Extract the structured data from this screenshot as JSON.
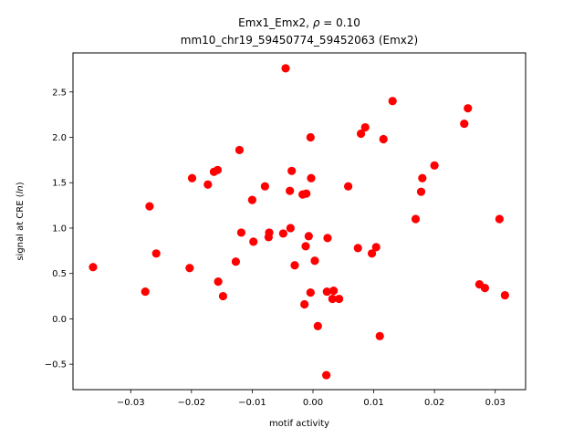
{
  "chart_data": {
    "type": "scatter",
    "title_line1_prefix": "Emx1_Emx2, ",
    "title_rho_symbol": "ρ",
    "title_rho_value": " = 0.10",
    "title_line2": "mm10_chr19_59450774_59452063 (Emx2)",
    "xlabel": "motif activity",
    "ylabel_prefix": "signal at CRE (",
    "ylabel_italic": "ln",
    "ylabel_suffix": ")",
    "xlim": [
      -0.0395,
      0.035
    ],
    "ylim": [
      -0.78,
      2.93
    ],
    "xticks": [
      -0.03,
      -0.02,
      -0.01,
      0.0,
      0.01,
      0.02,
      0.03
    ],
    "xtick_labels": [
      "−0.03",
      "−0.02",
      "−0.01",
      "0.00",
      "0.01",
      "0.02",
      "0.03"
    ],
    "yticks": [
      -0.5,
      0.0,
      0.5,
      1.0,
      1.5,
      2.0,
      2.5
    ],
    "ytick_labels": [
      "−0.5",
      "0.0",
      "0.5",
      "1.0",
      "1.5",
      "2.0",
      "2.5"
    ],
    "marker_color": "#ff0000",
    "points": [
      {
        "x": -0.0362,
        "y": 0.57
      },
      {
        "x": -0.0276,
        "y": 0.3
      },
      {
        "x": -0.0269,
        "y": 1.24
      },
      {
        "x": -0.0258,
        "y": 0.72
      },
      {
        "x": -0.0203,
        "y": 0.56
      },
      {
        "x": -0.0199,
        "y": 1.55
      },
      {
        "x": -0.0173,
        "y": 1.48
      },
      {
        "x": -0.0163,
        "y": 1.62
      },
      {
        "x": -0.0157,
        "y": 1.64
      },
      {
        "x": -0.0156,
        "y": 0.41
      },
      {
        "x": -0.0148,
        "y": 0.25
      },
      {
        "x": -0.0127,
        "y": 0.63
      },
      {
        "x": -0.0121,
        "y": 1.86
      },
      {
        "x": -0.0118,
        "y": 0.95
      },
      {
        "x": -0.01,
        "y": 1.31
      },
      {
        "x": -0.0098,
        "y": 0.85
      },
      {
        "x": -0.0079,
        "y": 1.46
      },
      {
        "x": -0.0073,
        "y": 0.9
      },
      {
        "x": -0.0072,
        "y": 0.95
      },
      {
        "x": -0.0049,
        "y": 0.94
      },
      {
        "x": -0.0045,
        "y": 2.76
      },
      {
        "x": -0.0038,
        "y": 1.41
      },
      {
        "x": -0.0037,
        "y": 1.0
      },
      {
        "x": -0.0035,
        "y": 1.63
      },
      {
        "x": -0.003,
        "y": 0.59
      },
      {
        "x": -0.0017,
        "y": 1.37
      },
      {
        "x": -0.0014,
        "y": 0.16
      },
      {
        "x": -0.0012,
        "y": 0.8
      },
      {
        "x": -0.0011,
        "y": 1.38
      },
      {
        "x": -0.0007,
        "y": 0.91
      },
      {
        "x": -0.0003,
        "y": 1.55
      },
      {
        "x": -0.0004,
        "y": 2.0
      },
      {
        "x": -0.0004,
        "y": 0.29
      },
      {
        "x": 0.0003,
        "y": 0.64
      },
      {
        "x": 0.0008,
        "y": -0.08
      },
      {
        "x": 0.0022,
        "y": -0.62
      },
      {
        "x": 0.0023,
        "y": 0.3
      },
      {
        "x": 0.0024,
        "y": 0.89
      },
      {
        "x": 0.0032,
        "y": 0.22
      },
      {
        "x": 0.0034,
        "y": 0.31
      },
      {
        "x": 0.0043,
        "y": 0.22
      },
      {
        "x": 0.0058,
        "y": 1.46
      },
      {
        "x": 0.0074,
        "y": 0.78
      },
      {
        "x": 0.0079,
        "y": 2.04
      },
      {
        "x": 0.0086,
        "y": 2.11
      },
      {
        "x": 0.0097,
        "y": 0.72
      },
      {
        "x": 0.0104,
        "y": 0.79
      },
      {
        "x": 0.011,
        "y": -0.19
      },
      {
        "x": 0.0116,
        "y": 1.98
      },
      {
        "x": 0.0131,
        "y": 2.4
      },
      {
        "x": 0.0169,
        "y": 1.1
      },
      {
        "x": 0.0178,
        "y": 1.4
      },
      {
        "x": 0.018,
        "y": 1.55
      },
      {
        "x": 0.02,
        "y": 1.69
      },
      {
        "x": 0.0249,
        "y": 2.15
      },
      {
        "x": 0.0255,
        "y": 2.32
      },
      {
        "x": 0.0274,
        "y": 0.38
      },
      {
        "x": 0.0283,
        "y": 0.34
      },
      {
        "x": 0.0307,
        "y": 1.1
      },
      {
        "x": 0.0316,
        "y": 0.26
      }
    ]
  }
}
